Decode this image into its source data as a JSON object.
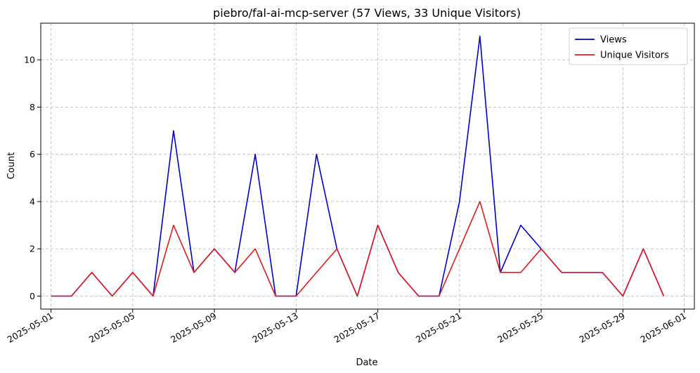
{
  "chart_data": {
    "type": "line",
    "title": "piebro/fal-ai-mcp-server (57 Views, 33 Unique Visitors)",
    "xlabel": "Date",
    "ylabel": "Count",
    "x": [
      "2025-05-01",
      "2025-05-02",
      "2025-05-03",
      "2025-05-04",
      "2025-05-05",
      "2025-05-06",
      "2025-05-07",
      "2025-05-08",
      "2025-05-09",
      "2025-05-10",
      "2025-05-11",
      "2025-05-12",
      "2025-05-13",
      "2025-05-14",
      "2025-05-15",
      "2025-05-16",
      "2025-05-17",
      "2025-05-18",
      "2025-05-19",
      "2025-05-20",
      "2025-05-21",
      "2025-05-22",
      "2025-05-23",
      "2025-05-24",
      "2025-05-25",
      "2025-05-26",
      "2025-05-27",
      "2025-05-28",
      "2025-05-29",
      "2025-05-30",
      "2025-05-31"
    ],
    "series": [
      {
        "name": "Views",
        "color": "#0000cc",
        "values": [
          0,
          0,
          1,
          0,
          1,
          0,
          7,
          1,
          2,
          1,
          6,
          0,
          0,
          6,
          2,
          0,
          3,
          1,
          0,
          0,
          4,
          11,
          1,
          3,
          2,
          1,
          1,
          1,
          0,
          2,
          0
        ]
      },
      {
        "name": "Unique Visitors",
        "color": "#e31a1c",
        "values": [
          0,
          0,
          1,
          0,
          1,
          0,
          3,
          1,
          2,
          1,
          2,
          0,
          0,
          null,
          2,
          0,
          3,
          1,
          0,
          0,
          null,
          4,
          1,
          1,
          2,
          1,
          1,
          1,
          0,
          2,
          0
        ]
      }
    ],
    "xticks": [
      "2025-05-01",
      "2025-05-05",
      "2025-05-09",
      "2025-05-13",
      "2025-05-17",
      "2025-05-21",
      "2025-05-25",
      "2025-05-29",
      "2025-06-01"
    ],
    "yticks": [
      0,
      2,
      4,
      6,
      8,
      10
    ],
    "xlim": [
      "2025-04-30T12:00",
      "2025-06-01T12:00"
    ],
    "ylim": [
      -0.55,
      11.55
    ],
    "grid": true,
    "grid_style": "dashed",
    "legend_position": "top-right"
  }
}
